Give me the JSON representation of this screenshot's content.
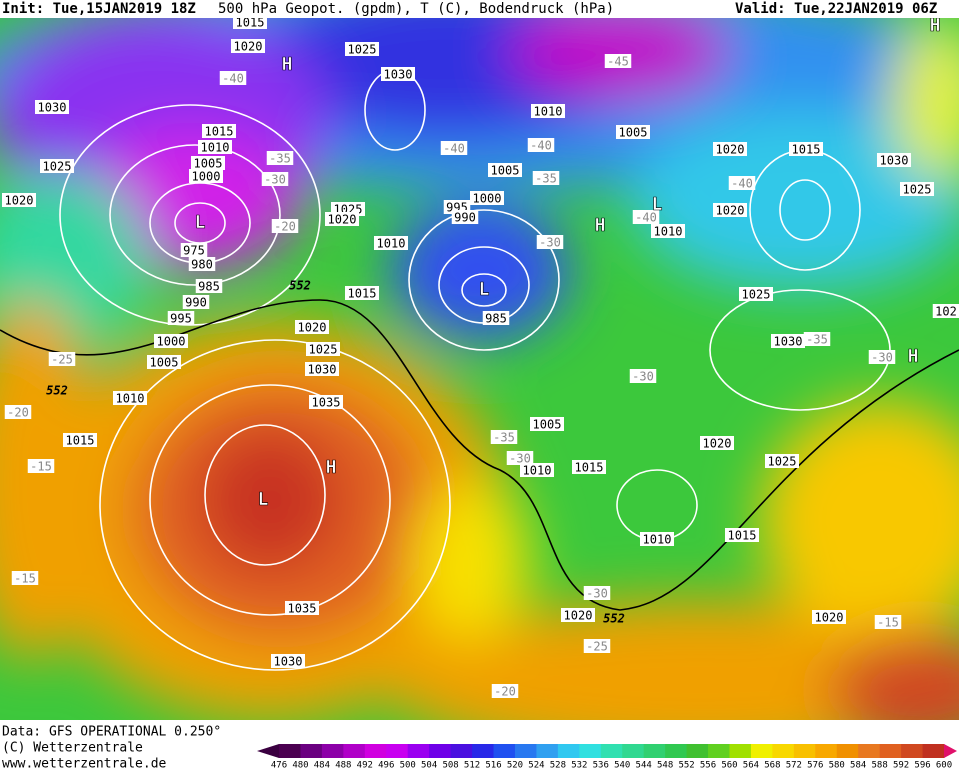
{
  "header": {
    "init": "Init: Tue,15JAN2019 18Z",
    "title": "500 hPa Geopot. (gpdm), T (C), Bodendruck (hPa)",
    "valid": "Valid: Tue,22JAN2019 06Z"
  },
  "footer": {
    "data": "Data: GFS OPERATIONAL 0.250°",
    "copyright": "(C) Wetterzentrale",
    "url": "www.wetterzentrale.de"
  },
  "colorbar": {
    "labels": [
      476,
      480,
      484,
      488,
      492,
      496,
      500,
      504,
      508,
      512,
      516,
      520,
      524,
      528,
      532,
      536,
      540,
      544,
      548,
      552,
      556,
      560,
      564,
      568,
      572,
      576,
      580,
      584,
      588,
      592,
      596,
      600
    ]
  },
  "map": {
    "pressure_labels": [
      "1015",
      "1020",
      "1025",
      "1030",
      "1030",
      "1010",
      "1015",
      "1010",
      "1005",
      "1000",
      "1005",
      "1020",
      "1015",
      "1030",
      "1025",
      "1005",
      "1025",
      "1020",
      "1000",
      "1025",
      "1020",
      "995",
      "990",
      "1020",
      "1010",
      "1010",
      "975",
      "980",
      "985",
      "1015",
      "1025",
      "990",
      "995",
      "985",
      "1020",
      "1025",
      "1000",
      "1030",
      "1030",
      "1005",
      "1010",
      "1035",
      "1005",
      "1015",
      "1020",
      "1025",
      "1010",
      "1015",
      "1010",
      "1015",
      "1020",
      "1035",
      "1020",
      "1030",
      "102"
    ],
    "temperature_labels": [
      "-40",
      "-45",
      "-35",
      "-30",
      "-40",
      "-40",
      "-35",
      "-40",
      "-40",
      "-20",
      "-30",
      "-25",
      "-35",
      "-30",
      "-20",
      "-30",
      "-35",
      "-30",
      "-15",
      "-15",
      "-30",
      "-25",
      "-20",
      "-15"
    ],
    "centers": [
      "L",
      "H",
      "L",
      "H",
      "L",
      "H",
      "H",
      "H",
      "L"
    ],
    "geopotential_labels": [
      "552",
      "552",
      "552"
    ]
  }
}
